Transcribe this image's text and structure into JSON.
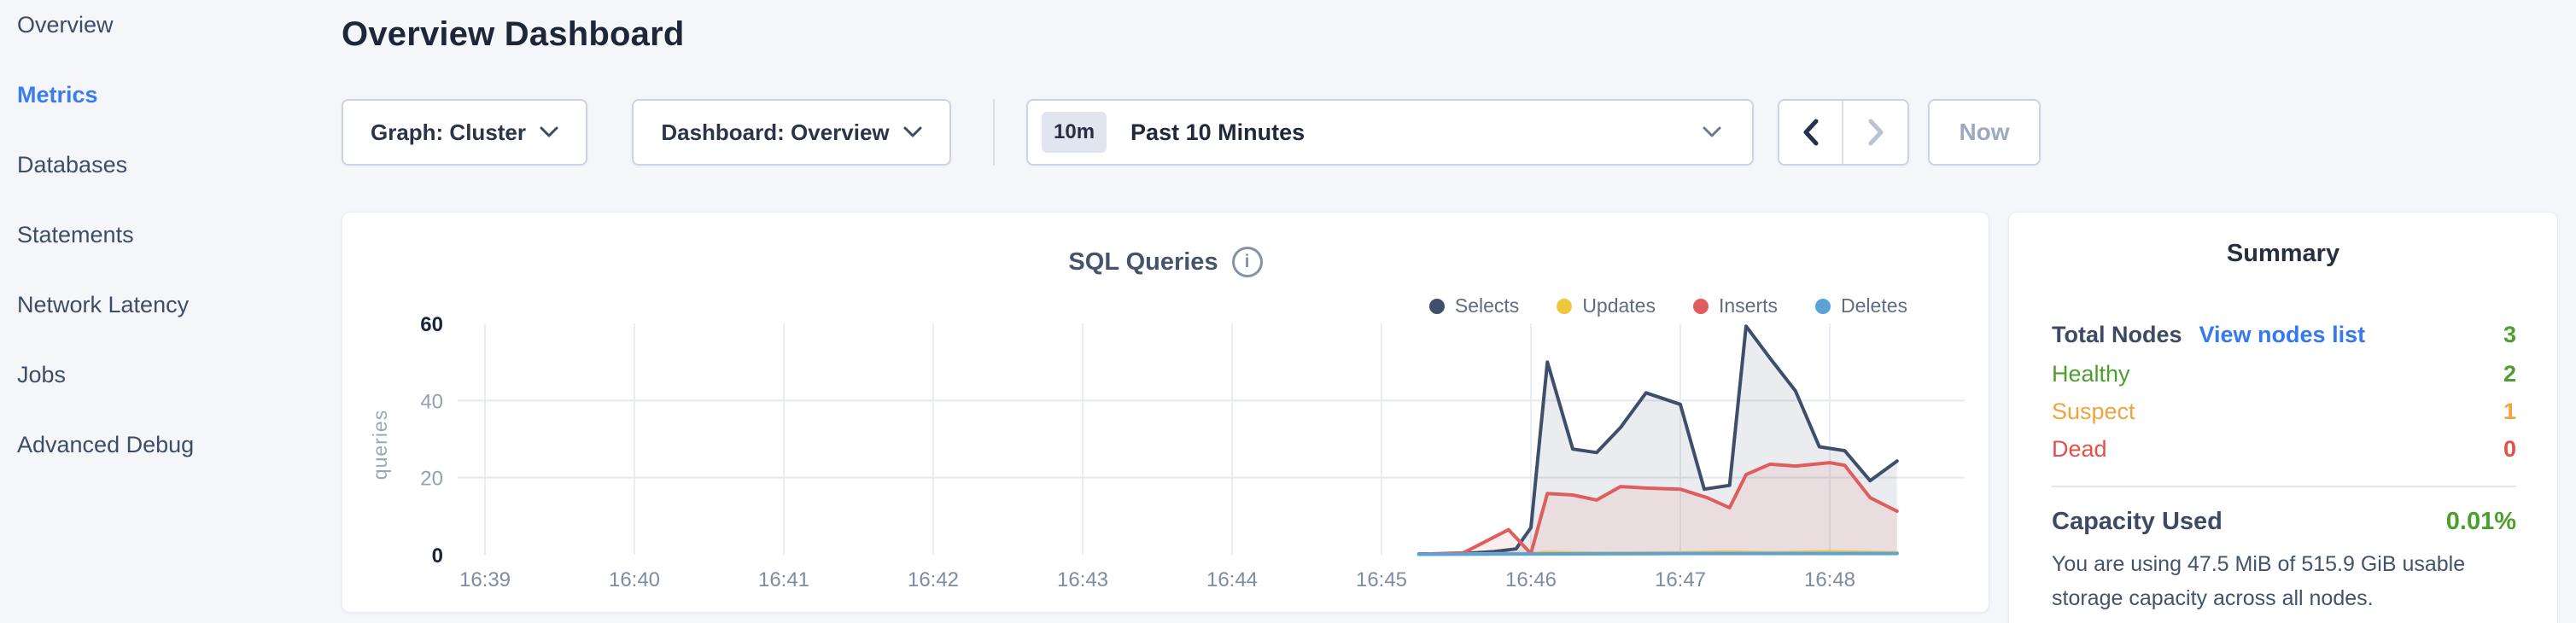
{
  "colors": {
    "accent_blue": "#3a7ded",
    "link_blue": "#3479f2",
    "green": "#4c9e2f",
    "orange": "#f0a33e",
    "red": "#e2504a",
    "selects": "#3f4e6b",
    "updates": "#f0c63f",
    "inserts": "#e05d5d",
    "deletes": "#5ba2d9"
  },
  "sidebar": {
    "items": [
      {
        "label": "Overview"
      },
      {
        "label": "Metrics"
      },
      {
        "label": "Databases"
      },
      {
        "label": "Statements"
      },
      {
        "label": "Network Latency"
      },
      {
        "label": "Jobs"
      },
      {
        "label": "Advanced Debug"
      }
    ]
  },
  "header": {
    "title": "Overview Dashboard"
  },
  "toolbar": {
    "graph_dropdown": "Graph: Cluster",
    "dashboard_dropdown": "Dashboard: Overview",
    "time_badge": "10m",
    "time_value": "Past 10 Minutes",
    "now_label": "Now"
  },
  "chart_data": {
    "type": "area",
    "title": "SQL Queries",
    "ylabel": "queries",
    "ylim": [
      0,
      60
    ],
    "y_ticks": [
      0,
      20,
      40,
      60
    ],
    "x_ticks": [
      "16:39",
      "16:40",
      "16:41",
      "16:42",
      "16:43",
      "16:44",
      "16:45",
      "16:46",
      "16:47",
      "16:48"
    ],
    "x_unit": "time of day, decimal minutes after 16:00",
    "grid": true,
    "legend_position": "top-right",
    "series": [
      {
        "name": "Selects",
        "color": "#3f4e6b",
        "fill": "rgba(63,78,107,0.11)",
        "points": [
          [
            45.25,
            0.2
          ],
          [
            45.55,
            0.3
          ],
          [
            45.75,
            0.8
          ],
          [
            45.9,
            1.5
          ],
          [
            46.0,
            7
          ],
          [
            46.11,
            50
          ],
          [
            46.28,
            27.4
          ],
          [
            46.44,
            26.5
          ],
          [
            46.6,
            33
          ],
          [
            46.77,
            42
          ],
          [
            47.0,
            39
          ],
          [
            47.16,
            17
          ],
          [
            47.33,
            18
          ],
          [
            47.44,
            59.3
          ],
          [
            47.6,
            51
          ],
          [
            47.77,
            42.5
          ],
          [
            47.93,
            28
          ],
          [
            48.1,
            27
          ],
          [
            48.27,
            19.2
          ],
          [
            48.45,
            24.3
          ]
        ]
      },
      {
        "name": "Updates",
        "color": "#f0c63f",
        "fill": "rgba(240,198,63,0.10)",
        "points": [
          [
            45.25,
            0.1
          ],
          [
            46.0,
            0.3
          ],
          [
            46.11,
            0.6
          ],
          [
            46.44,
            0.4
          ],
          [
            47.0,
            0.5
          ],
          [
            47.33,
            0.7
          ],
          [
            47.6,
            0.5
          ],
          [
            48.0,
            0.8
          ],
          [
            48.27,
            0.6
          ],
          [
            48.45,
            0.5
          ]
        ]
      },
      {
        "name": "Inserts",
        "color": "#e05d5d",
        "fill": "rgba(224,93,93,0.10)",
        "points": [
          [
            45.25,
            0.1
          ],
          [
            45.55,
            0.5
          ],
          [
            45.85,
            6.5
          ],
          [
            46.0,
            0.3
          ],
          [
            46.11,
            15.9
          ],
          [
            46.28,
            15.5
          ],
          [
            46.44,
            14.2
          ],
          [
            46.6,
            17.7
          ],
          [
            46.77,
            17.3
          ],
          [
            47.0,
            17.0
          ],
          [
            47.18,
            14.8
          ],
          [
            47.33,
            12.2
          ],
          [
            47.44,
            20.8
          ],
          [
            47.6,
            23.5
          ],
          [
            47.77,
            23.0
          ],
          [
            48.0,
            23.9
          ],
          [
            48.1,
            23.2
          ],
          [
            48.27,
            14.8
          ],
          [
            48.45,
            11.3
          ]
        ]
      },
      {
        "name": "Deletes",
        "color": "#5ba2d9",
        "fill": "rgba(91,162,217,0.10)",
        "points": [
          [
            45.25,
            0.1
          ],
          [
            46.0,
            0.2
          ],
          [
            46.5,
            0.25
          ],
          [
            47.0,
            0.3
          ],
          [
            47.5,
            0.3
          ],
          [
            48.0,
            0.3
          ],
          [
            48.45,
            0.3
          ]
        ]
      }
    ]
  },
  "summary": {
    "title": "Summary",
    "total_nodes_label": "Total Nodes",
    "view_nodes_link": "View nodes list",
    "total_nodes_value": "3",
    "rows": [
      {
        "label": "Healthy",
        "value": "2",
        "color": "green"
      },
      {
        "label": "Suspect",
        "value": "1",
        "color": "orange"
      },
      {
        "label": "Dead",
        "value": "0",
        "color": "red"
      }
    ],
    "capacity_label": "Capacity Used",
    "capacity_value": "0.01%",
    "capacity_description": "You are using 47.5 MiB of 515.9 GiB usable storage capacity across all nodes."
  }
}
